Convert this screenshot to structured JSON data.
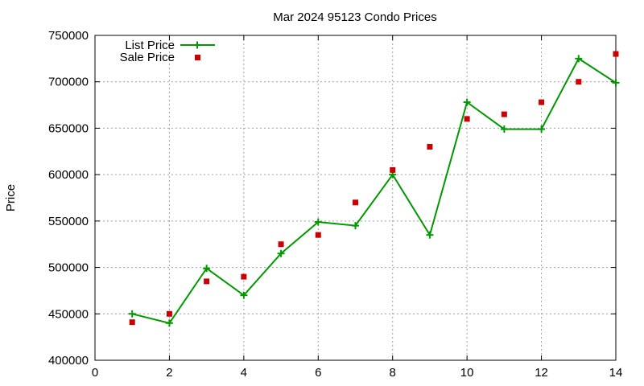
{
  "chart_data": {
    "type": "line",
    "title": "Mar 2024 95123 Condo Prices",
    "xlabel": "",
    "ylabel": "Price",
    "xlim": [
      0,
      14
    ],
    "ylim": [
      400000,
      750000
    ],
    "x_ticks": [
      0,
      2,
      4,
      6,
      8,
      10,
      12,
      14
    ],
    "y_ticks": [
      400000,
      450000,
      500000,
      550000,
      600000,
      650000,
      700000,
      750000
    ],
    "grid": true,
    "legend_position": "top-left",
    "series": [
      {
        "name": "List Price",
        "style": "line-with-plus-markers",
        "color": "#009900",
        "x": [
          1,
          2,
          3,
          4,
          5,
          6,
          7,
          8,
          9,
          10,
          11,
          12,
          13,
          14
        ],
        "y": [
          450000,
          440000,
          499000,
          470000,
          515000,
          549000,
          545000,
          600000,
          535000,
          678000,
          649000,
          649000,
          725000,
          699000
        ]
      },
      {
        "name": "Sale Price",
        "style": "square-markers",
        "color": "#cc0000",
        "x": [
          1,
          2,
          3,
          4,
          5,
          6,
          7,
          8,
          9,
          10,
          11,
          12,
          13,
          14
        ],
        "y": [
          441000,
          450000,
          485000,
          490000,
          525000,
          535000,
          570000,
          605000,
          630000,
          660000,
          665000,
          678000,
          700000,
          730000
        ]
      }
    ]
  }
}
